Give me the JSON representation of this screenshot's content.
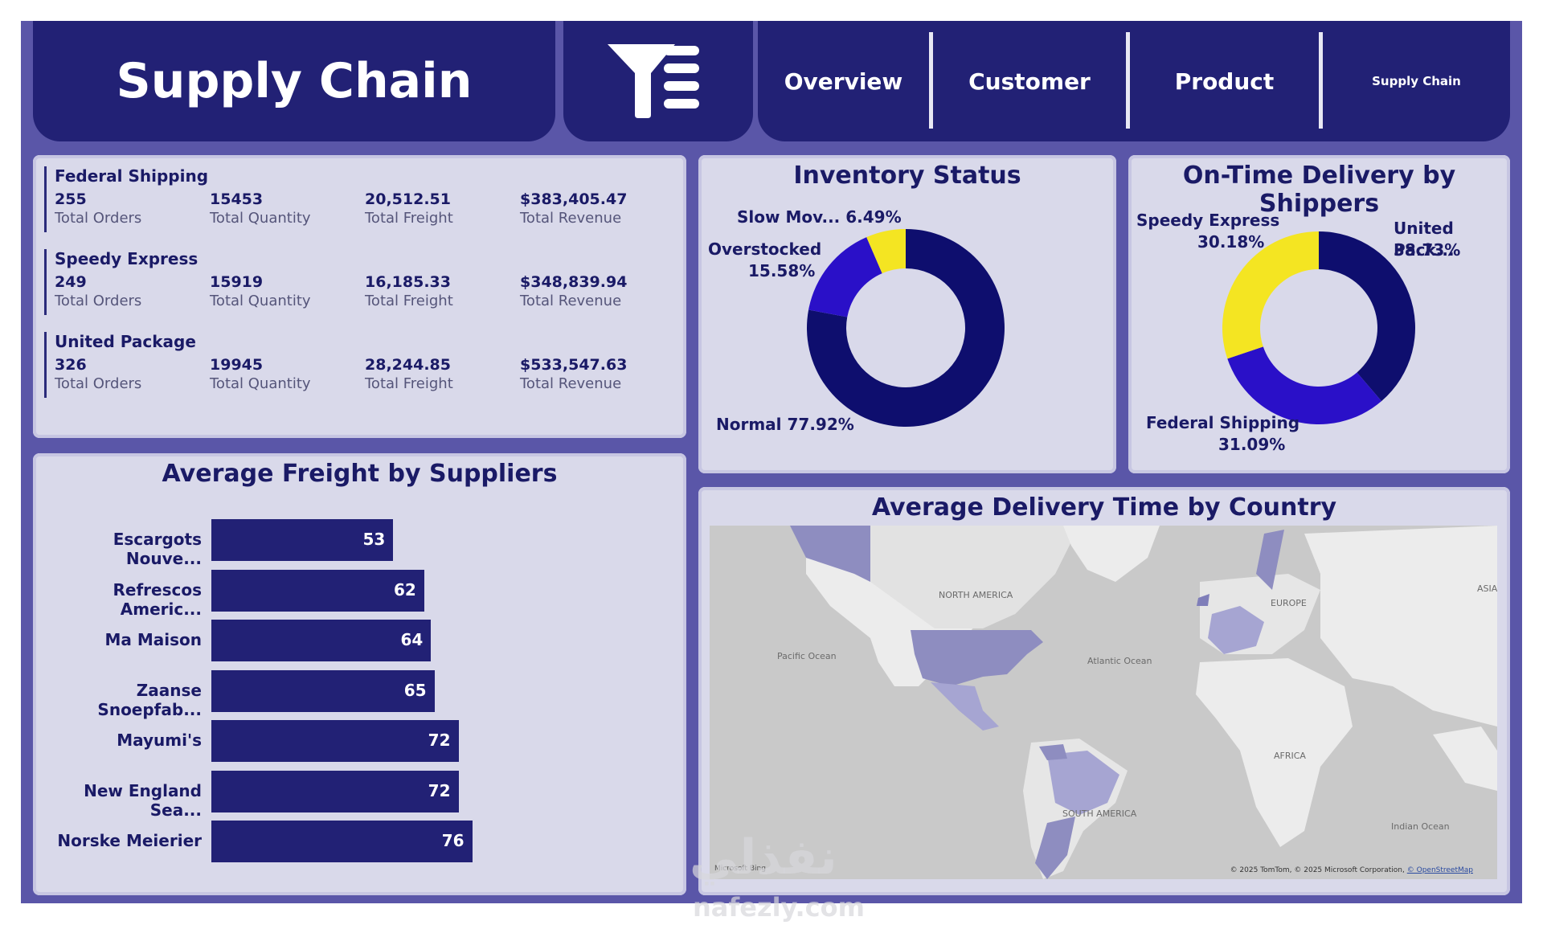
{
  "header": {
    "title": "Supply Chain",
    "nav": [
      "Overview",
      "Customer",
      "Product",
      "Supply Chain"
    ]
  },
  "shippers": [
    {
      "name": "Federal Shipping",
      "orders": "255",
      "quantity": "15453",
      "freight": "20,512.51",
      "revenue": "$383,405.47"
    },
    {
      "name": "Speedy Express",
      "orders": "249",
      "quantity": "15919",
      "freight": "16,185.33",
      "revenue": "$348,839.94"
    },
    {
      "name": "United Package",
      "orders": "326",
      "quantity": "19945",
      "freight": "28,244.85",
      "revenue": "$533,547.63"
    }
  ],
  "stat_labels": {
    "orders": "Total Orders",
    "quantity": "Total Quantity",
    "freight": "Total Freight",
    "revenue": "Total Revenue"
  },
  "chart_data": [
    {
      "type": "pie",
      "title": "Inventory Status",
      "labels": [
        "Normal",
        "Overstocked",
        "Slow Mov..."
      ],
      "values": [
        77.92,
        15.58,
        6.49
      ],
      "display": [
        "Normal 77.92%",
        "Overstocked",
        "15.58%",
        "Slow Mov... 6.49%"
      ],
      "colors": [
        "#0e0e6e",
        "#2a10c8",
        "#f4e522"
      ]
    },
    {
      "type": "pie",
      "title": "On-Time Delivery by Shippers",
      "labels": [
        "United Pack...",
        "Federal Shipping",
        "Speedy Express"
      ],
      "values": [
        38.73,
        31.09,
        30.18
      ],
      "display": [
        "United Pack...",
        "38.73%",
        "Federal Shipping",
        "31.09%",
        "Speedy Express",
        "30.18%"
      ],
      "colors": [
        "#0e0e6e",
        "#2a10c8",
        "#f4e522"
      ]
    },
    {
      "type": "bar",
      "title": "Average Freight by Suppliers",
      "categories": [
        "Escargots Nouve...",
        "Refrescos Americ...",
        "Ma Maison",
        "Zaanse Snoepfab...",
        "Mayumi's",
        "New England Sea...",
        "Norske Meierier"
      ],
      "values": [
        53,
        62,
        64,
        65,
        72,
        72,
        76
      ],
      "xlim": [
        0,
        96
      ],
      "color": "#222175"
    }
  ],
  "map": {
    "title": "Average Delivery Time by Country",
    "labels": [
      "NORTH AMERICA",
      "EUROPE",
      "ASIA",
      "Pacific Ocean",
      "Atlantic Ocean",
      "AFRICA",
      "SOUTH AMERICA",
      "Indian Ocean"
    ],
    "credit": "© 2025 TomTom, © 2025 Microsoft Corporation,",
    "credit_link": "© OpenStreetMap",
    "ms_text": "Microsoft Bing"
  },
  "watermark": {
    "arabic": "نفذلي",
    "latin": "nafezly.com"
  }
}
